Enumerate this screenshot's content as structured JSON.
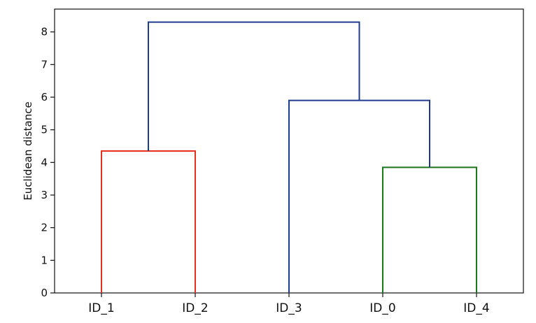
{
  "chart_data": {
    "type": "dendrogram",
    "title": "",
    "xlabel": "",
    "ylabel": "Euclidean distance",
    "ylim": [
      0,
      8.7
    ],
    "yticks": [
      0,
      1,
      2,
      3,
      4,
      5,
      6,
      7,
      8
    ],
    "grid": false,
    "leaves": [
      "ID_1",
      "ID_2",
      "ID_3",
      "ID_0",
      "ID_4"
    ],
    "merges": [
      {
        "left": "ID_1",
        "right": "ID_2",
        "height": 4.35,
        "color": "#e8301c"
      },
      {
        "left": "ID_0",
        "right": "ID_4",
        "height": 3.85,
        "color": "#1a7a1a"
      },
      {
        "left": "ID_3",
        "right": "cluster(ID_0, ID_4)",
        "height": 5.9,
        "color": "#1f3c8c"
      },
      {
        "left": "cluster(ID_1, ID_2)",
        "right": "cluster(ID_3, ID_0, ID_4)",
        "height": 8.3,
        "color": "#1f3c8c"
      }
    ]
  }
}
